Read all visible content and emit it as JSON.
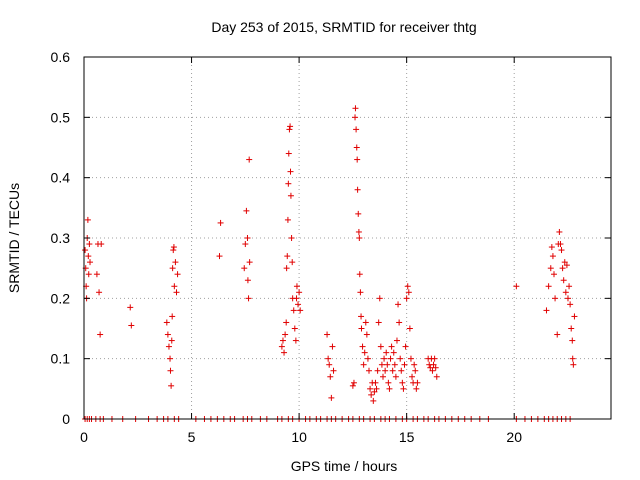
{
  "chart_data": {
    "type": "scatter",
    "title": "Day 253 of 2015, SRMTID for receiver thtg",
    "xlabel": "GPS time / hours",
    "ylabel": "SRMTID / TECUs",
    "xlim": [
      0,
      24.5
    ],
    "ylim": [
      0,
      0.6
    ],
    "xticks": [
      0,
      5,
      10,
      15,
      20
    ],
    "xtick_labels": [
      "0",
      "5",
      "10",
      "15",
      "20"
    ],
    "yticks": [
      0,
      0.1,
      0.2,
      0.3,
      0.4,
      0.5,
      0.6
    ],
    "ytick_labels": [
      "0",
      "0.1",
      "0.2",
      "0.3",
      "0.4",
      "0.5",
      "0.6"
    ],
    "grid": true,
    "marker": "+",
    "marker_color": "#e00000",
    "series": [
      {
        "name": "SRMTID",
        "points": [
          [
            0.05,
            0.28
          ],
          [
            0.08,
            0.25
          ],
          [
            0.1,
            0.22
          ],
          [
            0.12,
            0.2
          ],
          [
            0.15,
            0.3
          ],
          [
            0.18,
            0.33
          ],
          [
            0.2,
            0.27
          ],
          [
            0.22,
            0.24
          ],
          [
            0.25,
            0.29
          ],
          [
            0.28,
            0.26
          ],
          [
            0.6,
            0.24
          ],
          [
            0.65,
            0.29
          ],
          [
            0.7,
            0.21
          ],
          [
            0.75,
            0.14
          ],
          [
            0.8,
            0.29
          ],
          [
            2.15,
            0.185
          ],
          [
            2.2,
            0.155
          ],
          [
            3.85,
            0.16
          ],
          [
            3.9,
            0.14
          ],
          [
            3.95,
            0.12
          ],
          [
            4.0,
            0.1
          ],
          [
            4.02,
            0.08
          ],
          [
            4.05,
            0.055
          ],
          [
            4.08,
            0.13
          ],
          [
            4.1,
            0.17
          ],
          [
            4.12,
            0.25
          ],
          [
            4.15,
            0.28
          ],
          [
            4.18,
            0.285
          ],
          [
            4.2,
            0.22
          ],
          [
            4.25,
            0.26
          ],
          [
            4.3,
            0.21
          ],
          [
            4.35,
            0.24
          ],
          [
            6.3,
            0.27
          ],
          [
            6.35,
            0.325
          ],
          [
            7.45,
            0.25
          ],
          [
            7.5,
            0.29
          ],
          [
            7.55,
            0.345
          ],
          [
            7.6,
            0.3
          ],
          [
            7.62,
            0.23
          ],
          [
            7.65,
            0.2
          ],
          [
            7.68,
            0.43
          ],
          [
            7.7,
            0.26
          ],
          [
            9.2,
            0.12
          ],
          [
            9.25,
            0.13
          ],
          [
            9.3,
            0.11
          ],
          [
            9.35,
            0.14
          ],
          [
            9.4,
            0.16
          ],
          [
            9.42,
            0.25
          ],
          [
            9.45,
            0.27
          ],
          [
            9.48,
            0.33
          ],
          [
            9.5,
            0.39
          ],
          [
            9.52,
            0.44
          ],
          [
            9.55,
            0.48
          ],
          [
            9.58,
            0.485
          ],
          [
            9.6,
            0.41
          ],
          [
            9.62,
            0.37
          ],
          [
            9.65,
            0.3
          ],
          [
            9.68,
            0.26
          ],
          [
            9.7,
            0.2
          ],
          [
            9.75,
            0.18
          ],
          [
            9.8,
            0.15
          ],
          [
            9.85,
            0.13
          ],
          [
            9.88,
            0.2
          ],
          [
            9.9,
            0.22
          ],
          [
            9.95,
            0.19
          ],
          [
            10.0,
            0.21
          ],
          [
            10.05,
            0.18
          ],
          [
            11.3,
            0.14
          ],
          [
            11.35,
            0.1
          ],
          [
            11.4,
            0.09
          ],
          [
            11.45,
            0.07
          ],
          [
            11.5,
            0.035
          ],
          [
            11.55,
            0.12
          ],
          [
            11.6,
            0.08
          ],
          [
            12.5,
            0.055
          ],
          [
            12.55,
            0.06
          ],
          [
            12.6,
            0.5
          ],
          [
            12.62,
            0.515
          ],
          [
            12.65,
            0.48
          ],
          [
            12.68,
            0.45
          ],
          [
            12.7,
            0.43
          ],
          [
            12.72,
            0.38
          ],
          [
            12.75,
            0.34
          ],
          [
            12.78,
            0.31
          ],
          [
            12.8,
            0.3
          ],
          [
            12.82,
            0.24
          ],
          [
            12.85,
            0.21
          ],
          [
            12.88,
            0.17
          ],
          [
            12.9,
            0.15
          ],
          [
            12.95,
            0.12
          ],
          [
            13.0,
            0.09
          ],
          [
            13.05,
            0.11
          ],
          [
            13.1,
            0.16
          ],
          [
            13.15,
            0.14
          ],
          [
            13.2,
            0.1
          ],
          [
            13.25,
            0.08
          ],
          [
            13.3,
            0.05
          ],
          [
            13.35,
            0.04
          ],
          [
            13.4,
            0.06
          ],
          [
            13.45,
            0.03
          ],
          [
            13.5,
            0.045
          ],
          [
            13.55,
            0.06
          ],
          [
            13.6,
            0.05
          ],
          [
            13.65,
            0.08
          ],
          [
            13.7,
            0.16
          ],
          [
            13.75,
            0.2
          ],
          [
            13.8,
            0.12
          ],
          [
            13.85,
            0.09
          ],
          [
            13.9,
            0.07
          ],
          [
            13.95,
            0.1
          ],
          [
            14.0,
            0.08
          ],
          [
            14.05,
            0.11
          ],
          [
            14.1,
            0.09
          ],
          [
            14.15,
            0.06
          ],
          [
            14.2,
            0.05
          ],
          [
            14.25,
            0.1
          ],
          [
            14.3,
            0.12
          ],
          [
            14.35,
            0.08
          ],
          [
            14.4,
            0.11
          ],
          [
            14.45,
            0.09
          ],
          [
            14.5,
            0.07
          ],
          [
            14.55,
            0.13
          ],
          [
            14.6,
            0.19
          ],
          [
            14.65,
            0.16
          ],
          [
            14.7,
            0.1
          ],
          [
            14.75,
            0.08
          ],
          [
            14.8,
            0.06
          ],
          [
            14.85,
            0.05
          ],
          [
            14.9,
            0.09
          ],
          [
            14.95,
            0.12
          ],
          [
            15.0,
            0.2
          ],
          [
            15.05,
            0.22
          ],
          [
            15.1,
            0.21
          ],
          [
            15.15,
            0.15
          ],
          [
            15.2,
            0.1
          ],
          [
            15.25,
            0.07
          ],
          [
            15.3,
            0.06
          ],
          [
            15.35,
            0.09
          ],
          [
            15.4,
            0.08
          ],
          [
            15.45,
            0.05
          ],
          [
            15.5,
            0.06
          ],
          [
            16.0,
            0.1
          ],
          [
            16.05,
            0.09
          ],
          [
            16.1,
            0.085
          ],
          [
            16.15,
            0.1
          ],
          [
            16.2,
            0.08
          ],
          [
            16.25,
            0.09
          ],
          [
            16.3,
            0.1
          ],
          [
            16.35,
            0.085
          ],
          [
            16.4,
            0.07
          ],
          [
            20.1,
            0.22
          ],
          [
            21.5,
            0.18
          ],
          [
            21.6,
            0.22
          ],
          [
            21.7,
            0.25
          ],
          [
            21.75,
            0.285
          ],
          [
            21.8,
            0.27
          ],
          [
            21.85,
            0.24
          ],
          [
            21.9,
            0.2
          ],
          [
            22.0,
            0.14
          ],
          [
            22.05,
            0.29
          ],
          [
            22.1,
            0.31
          ],
          [
            22.15,
            0.29
          ],
          [
            22.2,
            0.28
          ],
          [
            22.25,
            0.25
          ],
          [
            22.3,
            0.23
          ],
          [
            22.35,
            0.26
          ],
          [
            22.4,
            0.21
          ],
          [
            22.45,
            0.255
          ],
          [
            22.5,
            0.2
          ],
          [
            22.55,
            0.22
          ],
          [
            22.6,
            0.19
          ],
          [
            22.65,
            0.15
          ],
          [
            22.7,
            0.13
          ],
          [
            22.72,
            0.1
          ],
          [
            22.75,
            0.09
          ],
          [
            22.8,
            0.17
          ],
          [
            0.05,
            0
          ],
          [
            0.15,
            0
          ],
          [
            0.25,
            0
          ],
          [
            0.35,
            0
          ],
          [
            0.55,
            0
          ],
          [
            0.75,
            0
          ],
          [
            0.9,
            0
          ],
          [
            1.3,
            0
          ],
          [
            1.8,
            0
          ],
          [
            2.4,
            0
          ],
          [
            3.0,
            0
          ],
          [
            3.4,
            0
          ],
          [
            3.7,
            0
          ],
          [
            3.9,
            0
          ],
          [
            4.2,
            0
          ],
          [
            4.4,
            0
          ],
          [
            5.2,
            0
          ],
          [
            5.6,
            0
          ],
          [
            5.9,
            0
          ],
          [
            6.2,
            0
          ],
          [
            6.5,
            0
          ],
          [
            6.8,
            0
          ],
          [
            7.0,
            0
          ],
          [
            7.4,
            0
          ],
          [
            7.6,
            0
          ],
          [
            7.8,
            0
          ],
          [
            8.2,
            0
          ],
          [
            8.5,
            0
          ],
          [
            9.0,
            0
          ],
          [
            9.2,
            0
          ],
          [
            9.5,
            0
          ],
          [
            9.7,
            0
          ],
          [
            10.0,
            0
          ],
          [
            10.3,
            0
          ],
          [
            10.5,
            0
          ],
          [
            10.8,
            0
          ],
          [
            11.0,
            0
          ],
          [
            11.3,
            0
          ],
          [
            11.5,
            0
          ],
          [
            11.7,
            0
          ],
          [
            12.0,
            0
          ],
          [
            12.3,
            0
          ],
          [
            12.5,
            0
          ],
          [
            12.8,
            0
          ],
          [
            13.0,
            0
          ],
          [
            13.3,
            0
          ],
          [
            13.5,
            0
          ],
          [
            13.8,
            0
          ],
          [
            14.0,
            0
          ],
          [
            14.2,
            0
          ],
          [
            14.5,
            0
          ],
          [
            14.8,
            0
          ],
          [
            15.0,
            0
          ],
          [
            15.3,
            0
          ],
          [
            15.5,
            0
          ],
          [
            15.8,
            0
          ],
          [
            16.0,
            0
          ],
          [
            16.3,
            0
          ],
          [
            16.5,
            0
          ],
          [
            16.8,
            0
          ],
          [
            17.1,
            0
          ],
          [
            17.4,
            0
          ],
          [
            17.7,
            0
          ],
          [
            18.0,
            0
          ],
          [
            18.4,
            0
          ],
          [
            18.8,
            0
          ],
          [
            20.1,
            0
          ],
          [
            20.5,
            0
          ],
          [
            20.8,
            0
          ],
          [
            21.1,
            0
          ],
          [
            21.4,
            0
          ],
          [
            21.6,
            0
          ],
          [
            21.8,
            0
          ],
          [
            22.0,
            0
          ],
          [
            22.2,
            0
          ],
          [
            22.4,
            0
          ],
          [
            22.6,
            0
          ]
        ]
      }
    ]
  }
}
